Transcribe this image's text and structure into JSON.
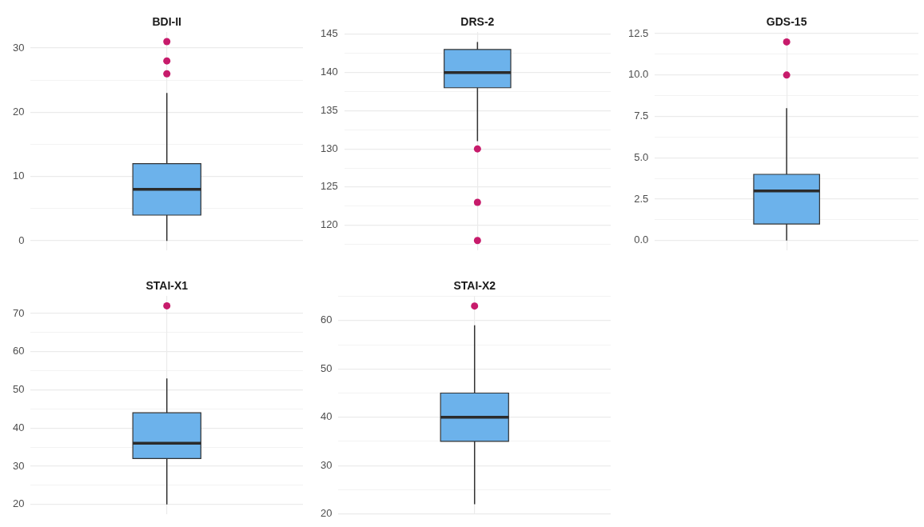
{
  "chart_data": [
    {
      "type": "box",
      "title": "BDI-II",
      "categories": [
        null
      ],
      "boxes": [
        {
          "low": 0,
          "q1": 4,
          "median": 8,
          "q3": 12,
          "high": 23,
          "outliers": [
            26,
            28,
            31
          ]
        }
      ],
      "color": "#6cb2eb",
      "marker": "circle",
      "ylim": [
        -1.5,
        32.5
      ],
      "yticks": [
        0,
        {
          "value": 5,
          "label": null
        },
        10,
        {
          "value": 15,
          "label": null
        },
        20,
        {
          "value": 25,
          "label": null
        },
        30
      ],
      "grid": true,
      "tick_labels": "y",
      "legend": false
    },
    {
      "type": "box",
      "title": "DRS-2",
      "categories": [
        null
      ],
      "boxes": [
        {
          "low": 131,
          "q1": 138,
          "median": 140,
          "q3": 143,
          "high": 144,
          "outliers": [
            130,
            123,
            118
          ]
        }
      ],
      "color": "#6cb2eb",
      "marker": "circle",
      "ylim": [
        116.7,
        145.3
      ],
      "yticks": [
        {
          "value": 117.5,
          "label": null
        },
        120,
        {
          "value": 122.5,
          "label": null
        },
        125,
        {
          "value": 127.5,
          "label": null
        },
        130,
        {
          "value": 132.5,
          "label": null
        },
        135,
        {
          "value": 137.5,
          "label": null
        },
        140,
        {
          "value": 142.5,
          "label": null
        },
        145
      ],
      "grid": true,
      "tick_labels": "y",
      "legend": false
    },
    {
      "type": "box",
      "title": "GDS-15",
      "categories": [
        null
      ],
      "boxes": [
        {
          "low": 0,
          "q1": 1,
          "median": 3,
          "q3": 4,
          "high": 8,
          "outliers": [
            10,
            12
          ]
        }
      ],
      "color": "#6cb2eb",
      "marker": "circle",
      "ylim": [
        -0.6,
        12.6
      ],
      "yticks": [
        {
          "value": 0,
          "label": "0.0"
        },
        {
          "value": 1.25,
          "label": null
        },
        2.5,
        {
          "value": 3.75,
          "label": null
        },
        {
          "value": 5,
          "label": "5.0"
        },
        {
          "value": 6.25,
          "label": null
        },
        7.5,
        {
          "value": 8.75,
          "label": null
        },
        {
          "value": 10,
          "label": "10.0"
        },
        {
          "value": 11.25,
          "label": null
        },
        12.5
      ],
      "grid": true,
      "tick_labels": "y",
      "legend": false
    },
    {
      "type": "box",
      "title": "STAI-X1",
      "categories": [
        null
      ],
      "boxes": [
        {
          "low": 20,
          "q1": 32,
          "median": 36,
          "q3": 44,
          "high": 53,
          "outliers": [
            72
          ]
        }
      ],
      "color": "#6cb2eb",
      "marker": "circle",
      "ylim": [
        17.4,
        74.6
      ],
      "yticks": [
        20,
        {
          "value": 25,
          "label": null
        },
        30,
        {
          "value": 35,
          "label": null
        },
        40,
        {
          "value": 45,
          "label": null
        },
        50,
        {
          "value": 55,
          "label": null
        },
        60,
        {
          "value": 65,
          "label": null
        },
        70
      ],
      "grid": true,
      "tick_labels": "y",
      "legend": false
    },
    {
      "type": "box",
      "title": "STAI-X2",
      "categories": [
        null
      ],
      "boxes": [
        {
          "low": 22,
          "q1": 35,
          "median": 40,
          "q3": 45,
          "high": 59,
          "outliers": [
            63
          ]
        }
      ],
      "color": "#6cb2eb",
      "marker": "circle",
      "ylim": [
        19.9,
        65.1
      ],
      "yticks": [
        20,
        {
          "value": 25,
          "label": null
        },
        30,
        {
          "value": 35,
          "label": null
        },
        40,
        {
          "value": 45,
          "label": null
        },
        50,
        {
          "value": 55,
          "label": null
        },
        60,
        {
          "value": 65,
          "label": null
        }
      ],
      "grid": true,
      "tick_labels": "y",
      "legend": false
    }
  ]
}
